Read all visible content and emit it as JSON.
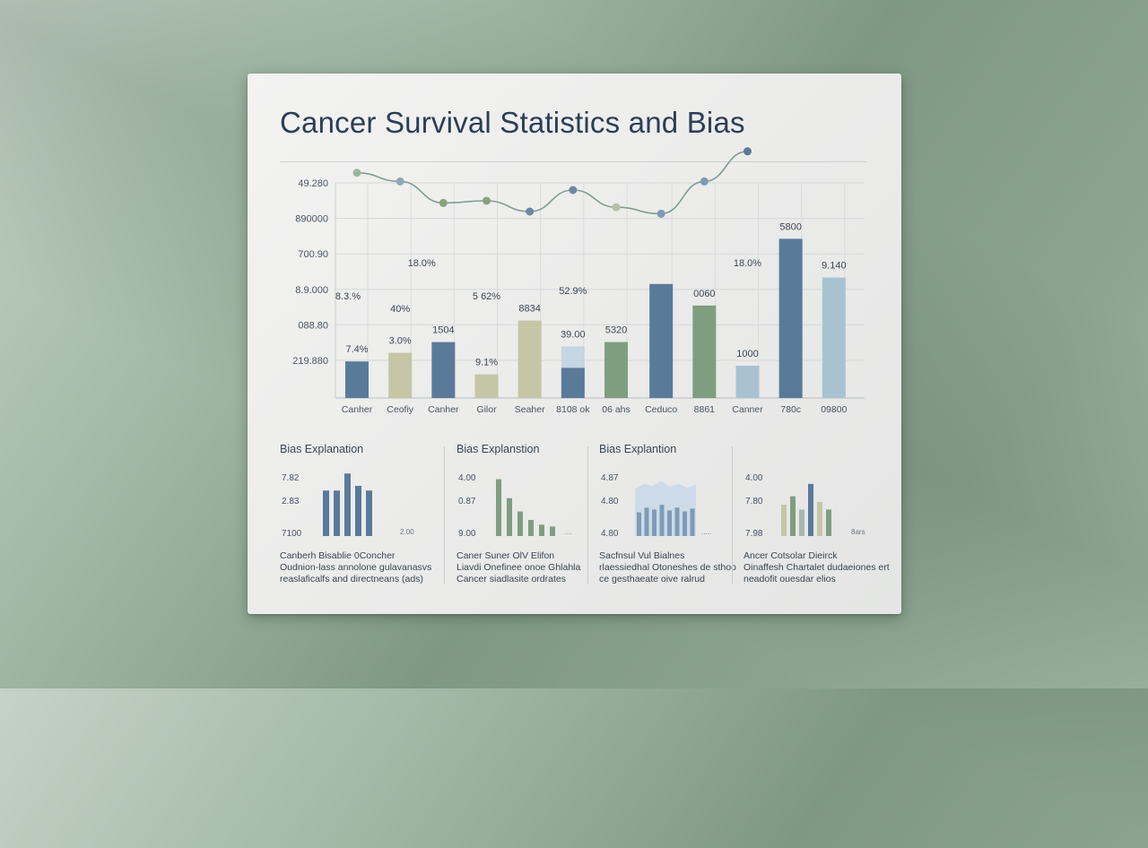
{
  "title": "Cancer Survival Statistics and Bias",
  "colors": {
    "slate": "#5a7a99",
    "sage": "#7f9e7f",
    "khaki": "#c4c6a6",
    "pale_blue": "#a9c2d2",
    "line": "#7f9e93"
  },
  "chart_data": [
    {
      "type": "bar",
      "title": "Cancer Survival Statistics and Bias",
      "y_tick_labels": [
        "219.880",
        "088.80",
        "8.9.000",
        "700.90",
        "890000",
        "49.280"
      ],
      "categories": [
        "Canher",
        "Ceofiy",
        "Canher",
        "Gilor",
        "Seaher",
        "8108 ok",
        "06 ahs",
        "Ceduco",
        "8861",
        "Canner",
        "780c",
        "09800"
      ],
      "values": [
        17,
        21,
        26,
        11,
        36,
        14,
        26,
        53,
        43,
        15,
        74,
        56
      ],
      "ghost_values": [
        null,
        null,
        null,
        null,
        null,
        24,
        null,
        null,
        null,
        null,
        null,
        null
      ],
      "bar_colors": [
        "slate",
        "khaki",
        "slate",
        "khaki",
        "khaki",
        "slate",
        "sage",
        "slate",
        "sage",
        "pale_blue",
        "slate",
        "pale_blue"
      ],
      "data_labels": [
        {
          "text": "7.4%",
          "bar": 0
        },
        {
          "text": "3.0%",
          "bar": 1
        },
        {
          "text": "1504",
          "bar": 2
        },
        {
          "text": "9.1%",
          "bar": 3
        },
        {
          "text": "8834",
          "bar": 4
        },
        {
          "text": "39.00",
          "bar": 5
        },
        {
          "text": "5320",
          "bar": 6
        },
        {
          "text": "0060",
          "bar": 8
        },
        {
          "text": "1000",
          "bar": 9
        },
        {
          "text": "5800",
          "bar": 10
        },
        {
          "text": "9.140",
          "bar": 11
        }
      ],
      "annotations": [
        "8.3.%",
        "40%",
        "5 62%",
        "52.9%",
        "18.0%",
        "18.0%"
      ],
      "line_series": {
        "values": [
          88,
          84,
          74,
          75,
          70,
          80,
          72,
          69,
          84,
          98
        ],
        "bar_index": [
          0,
          1,
          2,
          3,
          4,
          5,
          6,
          7,
          8,
          9
        ]
      },
      "y_range": [
        0,
        100
      ],
      "grid": true
    },
    {
      "type": "bar",
      "title": "Bias Explanation",
      "y_tick_labels": [
        "7100",
        "2.83",
        "7.82"
      ],
      "values": [
        48,
        48,
        66,
        53,
        48
      ],
      "note": "2.00",
      "description": [
        "Canberh Bisablie 0Concher",
        "Oudnion-lass annolone gulavanasvs",
        "reaslaficalfs and directneans (ads)"
      ]
    },
    {
      "type": "bar",
      "title": "Bias Explanstion",
      "y_tick_labels": [
        "9.00",
        "0.87",
        "4.00"
      ],
      "values": [
        60,
        40,
        26,
        17,
        12,
        10
      ],
      "note": "....",
      "description": [
        "Caner Suner OlV Elifon",
        "Liavdi Onefinee onoe Ghlahla",
        "Cancer siadlasite ordrates"
      ]
    },
    {
      "type": "area",
      "title": "Bias Explantion",
      "y_tick_labels": [
        "4.80",
        "4.80",
        "4.87"
      ],
      "values": [
        25,
        30,
        28,
        33,
        27,
        30,
        26,
        29
      ],
      "note": ".....",
      "description": [
        "Sacfnsul Vul Bialnes",
        "rlaessiedhal Otoneshes de sthoo",
        "ce gesthaeate oive ralrud"
      ]
    },
    {
      "type": "bar",
      "title": "",
      "y_tick_labels": [
        "7.98",
        "7.80",
        "4.00"
      ],
      "values": [
        33,
        42,
        28,
        55,
        36,
        28
      ],
      "note": "8ars",
      "description": [
        "Ancer Cotsolar Dieirck",
        "Oinaffesh Chartalet dudaeiones ert",
        "neadofit ouesdar elios"
      ]
    }
  ]
}
